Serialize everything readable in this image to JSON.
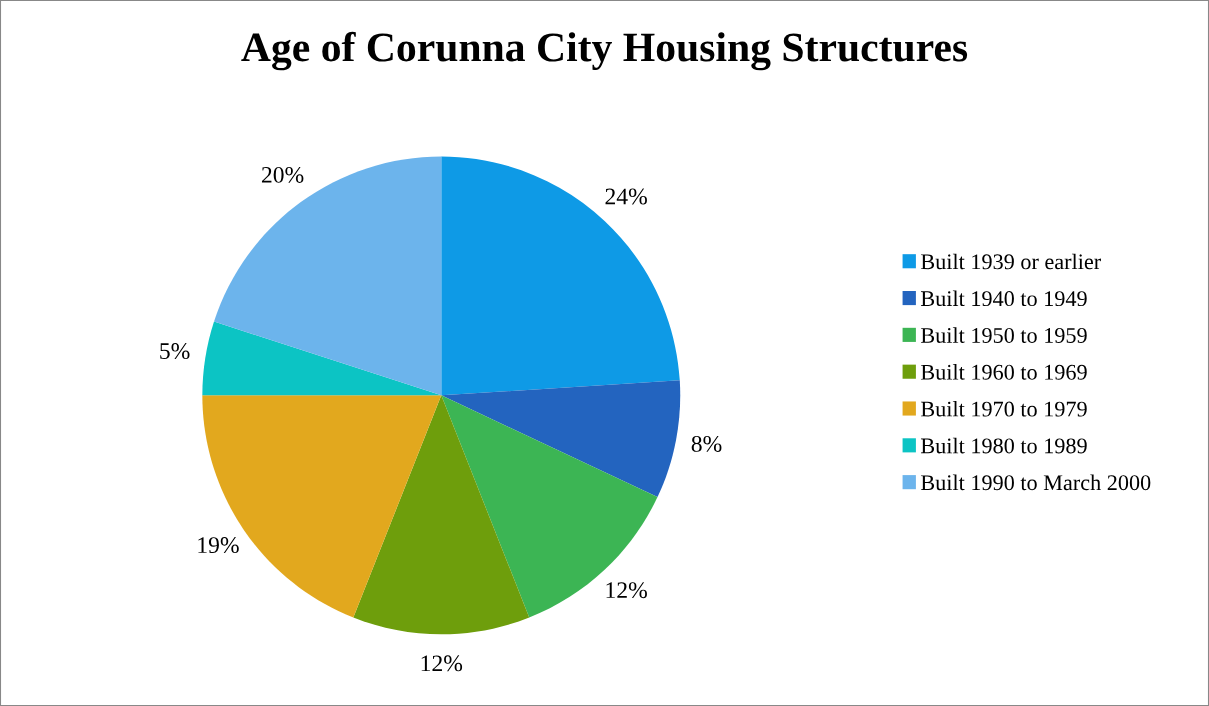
{
  "chart_data": {
    "type": "pie",
    "title": "Age of Corunna City Housing Structures",
    "categories": [
      "Built 1939 or earlier",
      "Built 1940 to 1949",
      "Built 1950 to 1959",
      "Built 1960 to 1969",
      "Built 1970 to 1979",
      "Built 1980 to 1989",
      "Built 1990 to March 2000"
    ],
    "values": [
      24,
      8,
      12,
      12,
      19,
      5,
      20
    ],
    "colors": [
      "#0e9ae6",
      "#2364bf",
      "#3cb554",
      "#6e9e0c",
      "#e2a81e",
      "#0cc4c4",
      "#6cb4ec"
    ],
    "value_labels": [
      "24%",
      "8%",
      "12%",
      "12%",
      "19%",
      "5%",
      "20%"
    ],
    "legend": "right"
  }
}
